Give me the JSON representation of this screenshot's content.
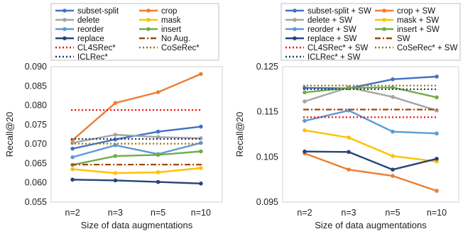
{
  "chart_data": [
    {
      "type": "line",
      "title": "",
      "xlabel": "Size of data augmentations",
      "ylabel": "Recall@20",
      "categories": [
        "n=2",
        "n=3",
        "n=5",
        "n=10"
      ],
      "ylim": [
        0.055,
        0.09
      ],
      "yticks": [
        "0.055",
        "0.060",
        "0.065",
        "0.070",
        "0.075",
        "0.080",
        "0.085",
        "0.090"
      ],
      "grid": false,
      "legend_position": "top",
      "series": [
        {
          "name": "subset-split",
          "color": "#4472c4",
          "style": "solid",
          "marker": true,
          "values": [
            0.0688,
            0.0712,
            0.0732,
            0.0745
          ]
        },
        {
          "name": "crop",
          "color": "#ed7d31",
          "style": "solid",
          "marker": true,
          "values": [
            0.071,
            0.0806,
            0.0834,
            0.0881
          ]
        },
        {
          "name": "delete",
          "color": "#a5a5a5",
          "style": "solid",
          "marker": true,
          "values": [
            0.0703,
            0.0724,
            0.0718,
            0.0715
          ]
        },
        {
          "name": "mask",
          "color": "#ffc000",
          "style": "solid",
          "marker": true,
          "values": [
            0.0635,
            0.0625,
            0.0627,
            0.0638
          ]
        },
        {
          "name": "reorder",
          "color": "#5b9bd5",
          "style": "solid",
          "marker": true,
          "values": [
            0.0666,
            0.0697,
            0.0674,
            0.0703
          ]
        },
        {
          "name": "insert",
          "color": "#70ad47",
          "style": "solid",
          "marker": true,
          "values": [
            0.0646,
            0.0669,
            0.0672,
            0.0681
          ]
        },
        {
          "name": "replace",
          "color": "#264478",
          "style": "solid",
          "marker": true,
          "values": [
            0.0608,
            0.0606,
            0.0602,
            0.0598
          ]
        },
        {
          "name": "No Aug.",
          "color": "#9e480e",
          "style": "dashdot",
          "marker": false,
          "values": [
            0.0647,
            0.0647,
            0.0647,
            0.0647
          ]
        },
        {
          "name": "CL4SRec*",
          "color": "#ff0000",
          "style": "dotted",
          "marker": false,
          "values": [
            0.0788,
            0.0788,
            0.0788,
            0.0788
          ]
        },
        {
          "name": "CoSeRec*",
          "color": "#997300",
          "style": "dotted",
          "marker": false,
          "values": [
            0.0701,
            0.0701,
            0.0701,
            0.0701
          ]
        },
        {
          "name": "ICLRec*",
          "color": "#203864",
          "style": "dotted",
          "marker": false,
          "values": [
            0.0713,
            0.0713,
            0.0713,
            0.0713
          ]
        }
      ]
    },
    {
      "type": "line",
      "title": "",
      "xlabel": "Size of data augmentations",
      "ylabel": "Recall@20",
      "categories": [
        "n=2",
        "n=3",
        "n=5",
        "n=10"
      ],
      "ylim": [
        0.095,
        0.125
      ],
      "yticks": [
        "0.095",
        "0.105",
        "0.115",
        "0.125"
      ],
      "grid": false,
      "legend_position": "top",
      "series": [
        {
          "name": "subset-split + SW",
          "color": "#4472c4",
          "style": "solid",
          "marker": true,
          "values": [
            0.1203,
            0.1202,
            0.1222,
            0.1228
          ]
        },
        {
          "name": "crop + SW",
          "color": "#ed7d31",
          "style": "solid",
          "marker": true,
          "values": [
            0.1058,
            0.1022,
            0.1008,
            0.0975
          ]
        },
        {
          "name": "delete + SW",
          "color": "#a5a5a5",
          "style": "solid",
          "marker": true,
          "values": [
            0.1173,
            0.1204,
            0.1183,
            0.1153
          ]
        },
        {
          "name": "mask + SW",
          "color": "#ffc000",
          "style": "solid",
          "marker": true,
          "values": [
            0.1109,
            0.1093,
            0.1052,
            0.104
          ]
        },
        {
          "name": "reorder + SW",
          "color": "#5b9bd5",
          "style": "solid",
          "marker": true,
          "values": [
            0.113,
            0.1153,
            0.1106,
            0.1102
          ]
        },
        {
          "name": "insert + SW",
          "color": "#70ad47",
          "style": "solid",
          "marker": true,
          "values": [
            0.1193,
            0.1203,
            0.1204,
            0.1182
          ]
        },
        {
          "name": "replace + SW",
          "color": "#264478",
          "style": "solid",
          "marker": true,
          "values": [
            0.1062,
            0.1061,
            0.1022,
            0.1046
          ]
        },
        {
          "name": "SW",
          "color": "#9e480e",
          "style": "dashdot",
          "marker": false,
          "values": [
            0.1155,
            0.1155,
            0.1155,
            0.1155
          ]
        },
        {
          "name": "CL4SRec* + SW",
          "color": "#ff0000",
          "style": "dotted",
          "marker": false,
          "values": [
            0.1138,
            0.1138,
            0.1138,
            0.1138
          ]
        },
        {
          "name": "CoSeRec* + SW",
          "color": "#997300",
          "style": "dotted",
          "marker": false,
          "values": [
            0.1208,
            0.1208,
            0.1208,
            0.1208
          ]
        },
        {
          "name": "ICLRec* + SW",
          "color": "#203864",
          "style": "dotted",
          "marker": false,
          "values": [
            0.12,
            0.12,
            0.12,
            0.12
          ]
        }
      ]
    }
  ]
}
